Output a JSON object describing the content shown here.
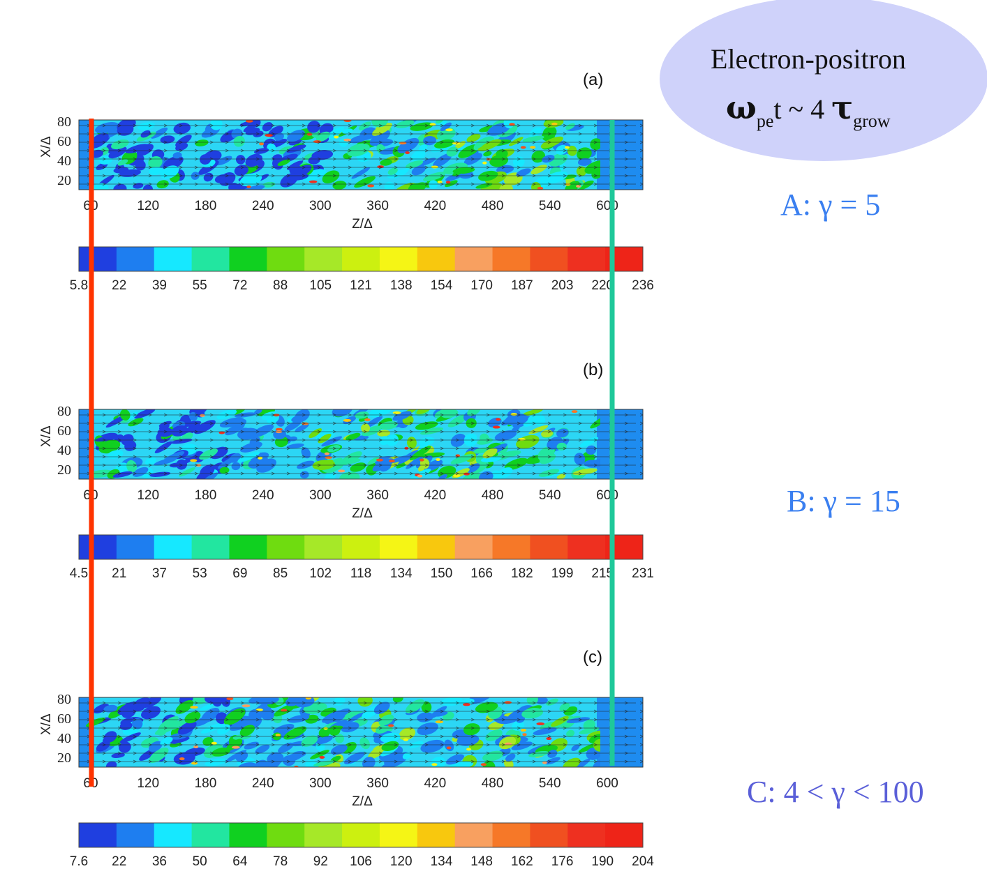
{
  "bubble": {
    "line1": "Electron-positron",
    "line2_symbol": "ω",
    "line2_sub1": "pe",
    "line2_mid": "t ~ 4 ",
    "line2_tau": "τ",
    "line2_sub2": "grow"
  },
  "annotations": [
    {
      "text": "A: γ = 5",
      "color": "#3a7ff0"
    },
    {
      "text": "B: γ = 15",
      "color": "#3a7ff0"
    },
    {
      "text": "C: 4 < γ < 100",
      "color": "#5a5fd8"
    }
  ],
  "marker_lines": {
    "red": "#ff3300",
    "green": "#1fc89a"
  },
  "chart_data": [
    {
      "type": "heatmap",
      "panel_label": "(a)",
      "xlabel": "Z/Δ",
      "ylabel": "X/Δ",
      "xticks": [
        "60",
        "120",
        "180",
        "240",
        "300",
        "360",
        "420",
        "480",
        "540",
        "600"
      ],
      "yticks": [
        "80",
        "60",
        "40",
        "20"
      ],
      "colorbar_ticks": [
        "5.8",
        "22",
        "39",
        "55",
        "72",
        "88",
        "105",
        "121",
        "138",
        "154",
        "170",
        "187",
        "203",
        "220",
        "236"
      ]
    },
    {
      "type": "heatmap",
      "panel_label": "(b)",
      "xlabel": "Z/Δ",
      "ylabel": "X/Δ",
      "xticks": [
        "60",
        "120",
        "180",
        "240",
        "300",
        "360",
        "420",
        "480",
        "540",
        "600"
      ],
      "yticks": [
        "80",
        "60",
        "40",
        "20"
      ],
      "colorbar_ticks": [
        "4.5",
        "21",
        "37",
        "53",
        "69",
        "85",
        "102",
        "118",
        "134",
        "150",
        "166",
        "182",
        "199",
        "215",
        "231"
      ]
    },
    {
      "type": "heatmap",
      "panel_label": "(c)",
      "xlabel": "Z/Δ",
      "ylabel": "X/Δ",
      "xticks": [
        "60",
        "120",
        "180",
        "240",
        "300",
        "360",
        "420",
        "480",
        "540",
        "600"
      ],
      "yticks": [
        "80",
        "60",
        "40",
        "20"
      ],
      "colorbar_ticks": [
        "7.6",
        "22",
        "36",
        "50",
        "64",
        "78",
        "92",
        "106",
        "120",
        "134",
        "148",
        "162",
        "176",
        "190",
        "204"
      ]
    }
  ],
  "colormap": [
    "#1f3fe0",
    "#1e7ef0",
    "#16e8ff",
    "#22e6a0",
    "#10d020",
    "#6fdc10",
    "#a6e828",
    "#ccf010",
    "#f5f515",
    "#f8c80e",
    "#f8a060",
    "#f67828",
    "#f05020",
    "#ee3020",
    "#ee2418"
  ]
}
